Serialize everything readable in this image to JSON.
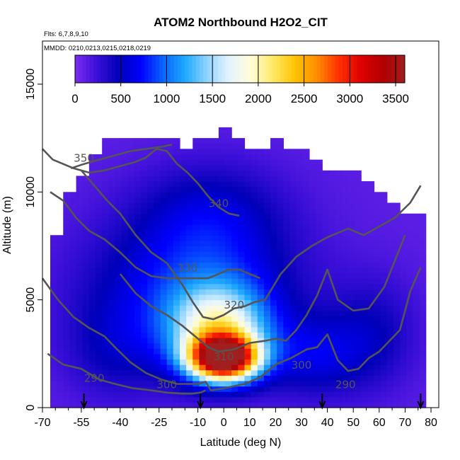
{
  "chart_data": {
    "type": "heatmap",
    "title": "ATOM2 Northbound H2O2_CIT",
    "flights_note": "Flts: 6,7,8,9,10",
    "dates_note": "MMDD: 0210,0213,0215,0218,0219",
    "xlabel": "Latitude (deg N)",
    "ylabel": "Altitude (m)",
    "xlim": [
      -70,
      83
    ],
    "ylim": [
      0,
      17000
    ],
    "x_ticks": [
      -70,
      -55,
      -40,
      -25,
      -10,
      0,
      10,
      20,
      30,
      40,
      50,
      60,
      70,
      80
    ],
    "x_tick_labels": [
      "-70",
      "-55",
      "-40",
      "-25",
      "-10",
      "0",
      "10",
      "20",
      "30",
      "40",
      "50",
      "60",
      "70",
      "80"
    ],
    "y_ticks": [
      0,
      5000,
      10000,
      15000
    ],
    "y_tick_labels": [
      "0",
      "5000",
      "10000",
      "15000"
    ],
    "colorbar": {
      "range": [
        0,
        3600
      ],
      "ticks": [
        0,
        500,
        1000,
        1500,
        2000,
        2500,
        3000,
        3500
      ],
      "tick_labels": [
        "0",
        "500",
        "1000",
        "1500",
        "2000",
        "2500",
        "3000",
        "3500"
      ],
      "colors": [
        "#7b2cf0",
        "#3b0fd8",
        "#0000b8",
        "#0000ff",
        "#0a64ff",
        "#1ea8ff",
        "#8fd4ff",
        "#e4f4ff",
        "#fffdd8",
        "#ffe968",
        "#ffc400",
        "#ff8c00",
        "#ff3000",
        "#e00000",
        "#b00000",
        "#a11f1f"
      ]
    },
    "contours": [
      {
        "label": "290",
        "x": [
          -68,
          -62,
          -55,
          -48,
          -42,
          -35,
          -28,
          -22,
          -16,
          -12,
          -9,
          -7
        ],
        "y": [
          2500,
          2000,
          1800,
          1300,
          1100,
          900,
          800,
          700,
          650,
          650,
          700,
          800
        ]
      },
      {
        "label": "300",
        "x": [
          -70,
          -64,
          -58,
          -52,
          -46,
          -42,
          -36,
          -30,
          -24,
          -18,
          -14,
          -10,
          -7,
          -5,
          0,
          8,
          14,
          20,
          26,
          32,
          36,
          40,
          44,
          48,
          52,
          56,
          60,
          64,
          68,
          72,
          76
        ],
        "y": [
          6000,
          5000,
          4200,
          3700,
          3300,
          2800,
          2100,
          1600,
          1300,
          1100,
          1100,
          1100,
          1200,
          800,
          900,
          1100,
          1400,
          2000,
          2300,
          2700,
          2800,
          3400,
          2200,
          1700,
          1800,
          2300,
          2600,
          3100,
          3600,
          5400,
          6500
        ]
      },
      {
        "label": "310",
        "x": [
          -40,
          -34,
          -28,
          -22,
          -16,
          -10,
          -6,
          -2,
          4,
          10,
          16,
          20,
          24,
          28,
          32,
          36,
          40,
          44,
          50,
          56,
          62,
          66,
          70
        ],
        "y": [
          6200,
          5300,
          4700,
          4300,
          3800,
          3200,
          2800,
          2600,
          2700,
          3000,
          3100,
          3200,
          3100,
          3600,
          4300,
          5200,
          6400,
          5000,
          4500,
          4600,
          5600,
          6800,
          8000
        ]
      },
      {
        "label": "320",
        "x": [
          -55,
          -50,
          -45,
          -40,
          -34,
          -28,
          -22,
          -16,
          -12,
          -8,
          -4,
          0,
          4,
          8,
          12,
          16,
          22,
          28,
          34,
          40,
          44,
          48,
          54,
          60,
          66,
          72,
          76
        ],
        "y": [
          11000,
          10300,
          9600,
          9000,
          8000,
          7200,
          6700,
          5700,
          4900,
          4200,
          4100,
          4300,
          4600,
          4700,
          4900,
          5000,
          6200,
          7000,
          7500,
          7900,
          8100,
          8300,
          8000,
          8400,
          8800,
          9500,
          10300
        ]
      },
      {
        "label": "330",
        "x": [
          -67,
          -62,
          -57,
          -52,
          -46,
          -40,
          -34,
          -28,
          -22,
          -18,
          -14,
          -10,
          -6,
          -2,
          2,
          6,
          10,
          14
        ],
        "y": [
          10000,
          9600,
          8800,
          8200,
          7800,
          7200,
          6500,
          6100,
          6000,
          6000,
          6000,
          6000,
          6000,
          6200,
          6400,
          6400,
          6200,
          6000
        ]
      },
      {
        "label": "340",
        "x": [
          -70,
          -66,
          -62,
          -58,
          -52,
          -46,
          -40,
          -34,
          -30,
          -26,
          -22,
          -18,
          -14,
          -10,
          -6,
          -2,
          2,
          6
        ],
        "y": [
          12000,
          11500,
          11300,
          11100,
          10900,
          11000,
          11200,
          11400,
          11600,
          12000,
          11900,
          11300,
          10900,
          10400,
          9800,
          9300,
          9000,
          8900
        ]
      },
      {
        "label": "350",
        "x": [
          -59,
          -54,
          -48,
          -42,
          -36,
          -30,
          -24,
          -20
        ],
        "y": [
          11100,
          11300,
          11500,
          11700,
          11900,
          12000,
          12100,
          12200
        ]
      }
    ],
    "contours_labels_pos": [
      {
        "label": "290",
        "x": -50,
        "y": 1200
      },
      {
        "label": "300",
        "x": -22,
        "y": 900
      },
      {
        "label": "310",
        "x": 0,
        "y": 2200
      },
      {
        "label": "320",
        "x": 4,
        "y": 4600
      },
      {
        "label": "330",
        "x": -14,
        "y": 6300
      },
      {
        "label": "340",
        "x": -2,
        "y": 9300
      },
      {
        "label": "350",
        "x": -54,
        "y": 11400
      },
      {
        "label": "300",
        "x": 30,
        "y": 1800
      },
      {
        "label": "290",
        "x": 47,
        "y": 900
      }
    ],
    "data_extent": {
      "lat_edges": [
        -67,
        -62,
        -57,
        -52,
        -47,
        -42,
        -37,
        -32,
        -27,
        -22,
        -17,
        -12,
        -7,
        -2,
        3,
        8,
        13,
        18,
        23,
        28,
        33,
        38,
        43,
        48,
        53,
        58,
        63,
        68,
        73,
        78
      ],
      "alt_top": [
        8000,
        10000,
        10600,
        11700,
        12500,
        12500,
        12500,
        12500,
        12500,
        12300,
        12000,
        12500,
        12500,
        12800,
        12300,
        12000,
        12000,
        12300,
        12000,
        11800,
        11500,
        11000,
        10900,
        10900,
        10400,
        10000,
        9500,
        8800,
        9000
      ]
    },
    "flight_arrows_lat": [
      -54,
      -9,
      38,
      76
    ]
  }
}
